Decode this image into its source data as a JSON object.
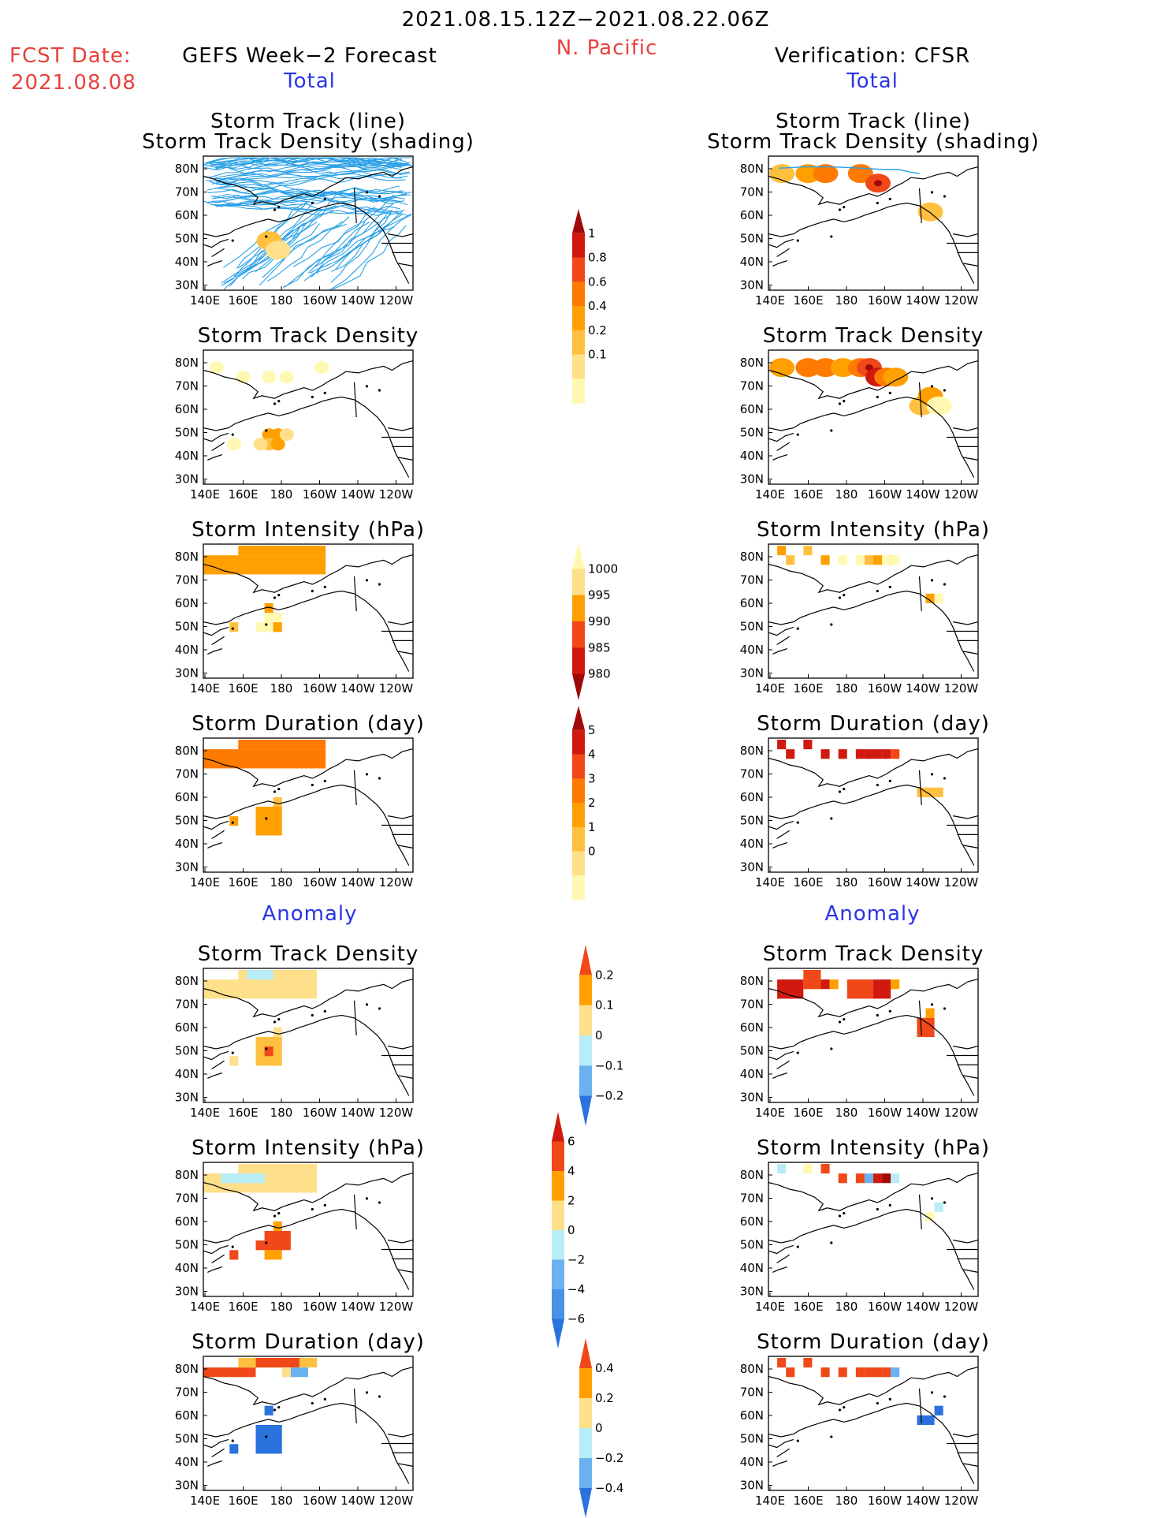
{
  "header": {
    "date_range": "2021.08.15.12Z−2021.08.22.06Z",
    "region": "N. Pacific",
    "fcst_label": "FCST Date:",
    "fcst_date": "2021.08.08",
    "left_title": "GEFS Week−2 Forecast",
    "right_title": "Verification: CFSR",
    "total_label": "Total",
    "anomaly_label": "Anomaly"
  },
  "colors": {
    "shade_low": "#fff8b0",
    "shade_1": "#ffe08a",
    "shade_2": "#ffc040",
    "shade_3": "#ffa000",
    "shade_4": "#ff7a00",
    "shade_5": "#f04818",
    "shade_6": "#d01a10",
    "shade_7": "#a00808",
    "neg_1": "#b8ecf6",
    "neg_2": "#6ab2ef",
    "neg_3": "#2a72de",
    "track": "#2aa0e6"
  },
  "chart_data": [
    {
      "type": "heatmap",
      "panel": "left",
      "title_line1": "Storm Track (line)",
      "title_line2": "Storm Track Density (shading)",
      "xlabel": "",
      "ylabel": "",
      "x_ticks": [
        "140E",
        "160E",
        "180",
        "160W",
        "140W",
        "120W"
      ],
      "y_ticks": [
        "80N",
        "70N",
        "60N",
        "50N",
        "40N",
        "30N"
      ],
      "tracks_shown": true,
      "max_density_region": "50N 180"
    },
    {
      "type": "heatmap",
      "panel": "right",
      "title_line1": "Storm Track (line)",
      "title_line2": "Storm Track Density (shading)",
      "x_ticks": [
        "140E",
        "160E",
        "180",
        "160W",
        "140W",
        "120W"
      ],
      "y_ticks": [
        "80N",
        "70N",
        "60N",
        "50N",
        "40N",
        "30N"
      ],
      "tracks_shown": true,
      "max_density_region": "78N 150W"
    },
    {
      "type": "heatmap",
      "panel": "left",
      "title_line1": "Storm Track Density",
      "x_ticks": [
        "140E",
        "160E",
        "180",
        "160W",
        "140W",
        "120W"
      ],
      "y_ticks": [
        "80N",
        "70N",
        "60N",
        "50N",
        "40N",
        "30N"
      ]
    },
    {
      "type": "heatmap",
      "panel": "right",
      "title_line1": "Storm Track Density",
      "x_ticks": [
        "140E",
        "160E",
        "180",
        "160W",
        "140W",
        "120W"
      ],
      "y_ticks": [
        "80N",
        "70N",
        "60N",
        "50N",
        "40N",
        "30N"
      ]
    },
    {
      "type": "heatmap",
      "panel": "left",
      "title_line1": "Storm Intensity (hPa)",
      "x_ticks": [
        "140E",
        "160E",
        "180",
        "160W",
        "140W",
        "120W"
      ],
      "y_ticks": [
        "80N",
        "70N",
        "60N",
        "50N",
        "40N",
        "30N"
      ]
    },
    {
      "type": "heatmap",
      "panel": "right",
      "title_line1": "Storm Intensity (hPa)",
      "x_ticks": [
        "140E",
        "160E",
        "180",
        "160W",
        "140W",
        "120W"
      ],
      "y_ticks": [
        "80N",
        "70N",
        "60N",
        "50N",
        "40N",
        "30N"
      ]
    },
    {
      "type": "heatmap",
      "panel": "left",
      "title_line1": "Storm Duration (day)",
      "x_ticks": [
        "140E",
        "160E",
        "180",
        "160W",
        "140W",
        "120W"
      ],
      "y_ticks": [
        "80N",
        "70N",
        "60N",
        "50N",
        "40N",
        "30N"
      ]
    },
    {
      "type": "heatmap",
      "panel": "right",
      "title_line1": "Storm Duration (day)",
      "x_ticks": [
        "140E",
        "160E",
        "180",
        "160W",
        "140W",
        "120W"
      ],
      "y_ticks": [
        "80N",
        "70N",
        "60N",
        "50N",
        "40N",
        "30N"
      ]
    },
    {
      "type": "heatmap",
      "panel": "left",
      "section": "Anomaly",
      "title_line1": "Storm Track Density",
      "x_ticks": [
        "140E",
        "160E",
        "180",
        "160W",
        "140W",
        "120W"
      ],
      "y_ticks": [
        "80N",
        "70N",
        "60N",
        "50N",
        "40N",
        "30N"
      ]
    },
    {
      "type": "heatmap",
      "panel": "right",
      "section": "Anomaly",
      "title_line1": "Storm Track Density",
      "x_ticks": [
        "140E",
        "160E",
        "180",
        "160W",
        "140W",
        "120W"
      ],
      "y_ticks": [
        "80N",
        "70N",
        "60N",
        "50N",
        "40N",
        "30N"
      ]
    },
    {
      "type": "heatmap",
      "panel": "left",
      "section": "Anomaly",
      "title_line1": "Storm Intensity (hPa)",
      "x_ticks": [
        "140E",
        "160E",
        "180",
        "160W",
        "140W",
        "120W"
      ],
      "y_ticks": [
        "80N",
        "70N",
        "60N",
        "50N",
        "40N",
        "30N"
      ]
    },
    {
      "type": "heatmap",
      "panel": "right",
      "section": "Anomaly",
      "title_line1": "Storm Intensity (hPa)",
      "x_ticks": [
        "140E",
        "160E",
        "180",
        "160W",
        "140W",
        "120W"
      ],
      "y_ticks": [
        "80N",
        "70N",
        "60N",
        "50N",
        "40N",
        "30N"
      ]
    },
    {
      "type": "heatmap",
      "panel": "left",
      "section": "Anomaly",
      "title_line1": "Storm Duration (day)",
      "x_ticks": [
        "140E",
        "160E",
        "180",
        "160W",
        "140W",
        "120W"
      ],
      "y_ticks": [
        "80N",
        "70N",
        "60N",
        "50N",
        "40N",
        "30N"
      ]
    },
    {
      "type": "heatmap",
      "panel": "right",
      "section": "Anomaly",
      "title_line1": "Storm Duration (day)",
      "x_ticks": [
        "140E",
        "160E",
        "180",
        "160W",
        "140W",
        "120W"
      ],
      "y_ticks": [
        "80N",
        "70N",
        "60N",
        "50N",
        "40N",
        "30N"
      ]
    }
  ],
  "colorbars": [
    {
      "name": "density",
      "labels": [
        "1",
        "0.8",
        "0.6",
        "0.4",
        "0.2",
        "0.1"
      ],
      "colors": [
        "#a00808",
        "#d01a10",
        "#f04818",
        "#ff7a00",
        "#ffa000",
        "#ffc040",
        "#ffe08a",
        "#fff8b0"
      ]
    },
    {
      "name": "intensity",
      "labels": [
        "1000",
        "995",
        "990",
        "985",
        "980"
      ],
      "colors": [
        "#fff8b0",
        "#ffe08a",
        "#ffa000",
        "#f04818",
        "#d01a10",
        "#a00808"
      ]
    },
    {
      "name": "duration",
      "labels": [
        "5",
        "4",
        "3",
        "2",
        "1",
        "0"
      ],
      "colors": [
        "#a00808",
        "#d01a10",
        "#f04818",
        "#ff7a00",
        "#ffa000",
        "#ffc040",
        "#ffe08a",
        "#fff8b0"
      ]
    },
    {
      "name": "anom_density",
      "labels": [
        "0.2",
        "0.1",
        "0",
        "−0.1",
        "−0.2"
      ],
      "colors": [
        "#f04818",
        "#ffa000",
        "#ffe08a",
        "#b8ecf6",
        "#6ab2ef",
        "#2a72de"
      ]
    },
    {
      "name": "anom_intensity",
      "labels": [
        "6",
        "4",
        "2",
        "0",
        "−2",
        "−4",
        "−6"
      ],
      "colors": [
        "#d01a10",
        "#f04818",
        "#ffa000",
        "#ffe08a",
        "#b8ecf6",
        "#6ab2ef",
        "#4a92e6",
        "#2a72de"
      ]
    },
    {
      "name": "anom_duration",
      "labels": [
        "0.4",
        "0.2",
        "0",
        "−0.2",
        "−0.4"
      ],
      "colors": [
        "#f04818",
        "#ffa000",
        "#ffe08a",
        "#b8ecf6",
        "#6ab2ef",
        "#2a72de"
      ]
    }
  ]
}
